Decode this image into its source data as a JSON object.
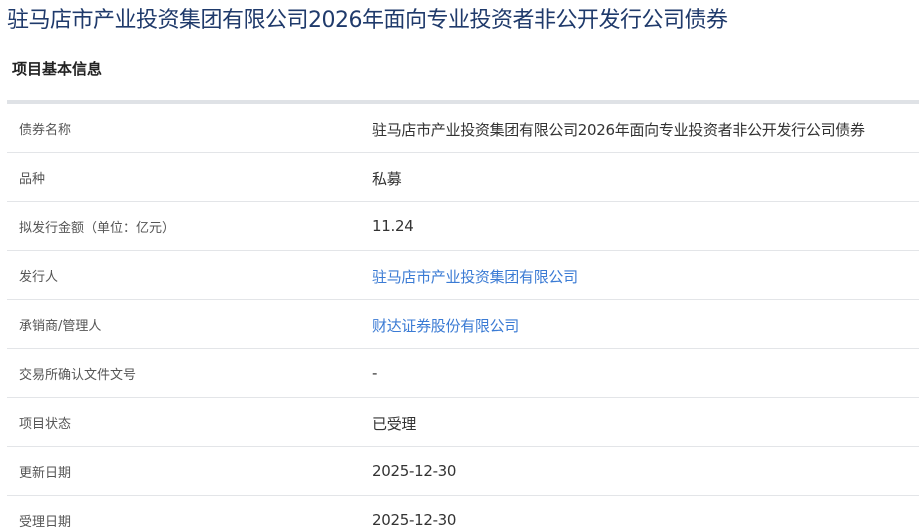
{
  "page_title": "驻马店市产业投资集团有限公司2026年面向专业投资者非公开发行公司债券",
  "section_title": "项目基本信息",
  "colors": {
    "title": "#1f3a6b",
    "link": "#3b7bd4"
  },
  "rows": [
    {
      "label": "债券名称",
      "value": "驻马店市产业投资集团有限公司2026年面向专业投资者非公开发行公司债券"
    },
    {
      "label": "品种",
      "value": "私募"
    },
    {
      "label": "拟发行金额（单位：亿元）",
      "value": "11.24"
    },
    {
      "label": "发行人",
      "value": "驻马店市产业投资集团有限公司"
    },
    {
      "label": "承销商/管理人",
      "value": "财达证券股份有限公司"
    },
    {
      "label": "交易所确认文件文号",
      "value": "-"
    },
    {
      "label": "项目状态",
      "value": "已受理"
    },
    {
      "label": "更新日期",
      "value": "2025-12-30"
    },
    {
      "label": "受理日期",
      "value": "2025-12-30"
    }
  ]
}
